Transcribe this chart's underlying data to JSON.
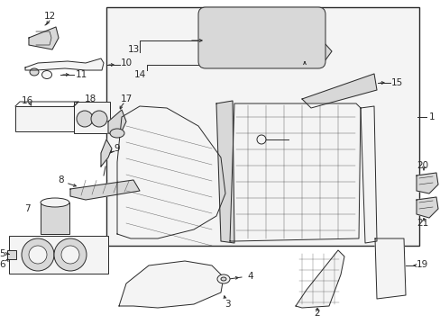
{
  "bg": "#ffffff",
  "lc": "#2a2a2a",
  "lw": 0.7,
  "fs": 7,
  "figw": 4.89,
  "figh": 3.6,
  "dpi": 100,
  "gray_fill": "#e8e8e8",
  "light_fill": "#f4f4f4",
  "mid_fill": "#d8d8d8"
}
